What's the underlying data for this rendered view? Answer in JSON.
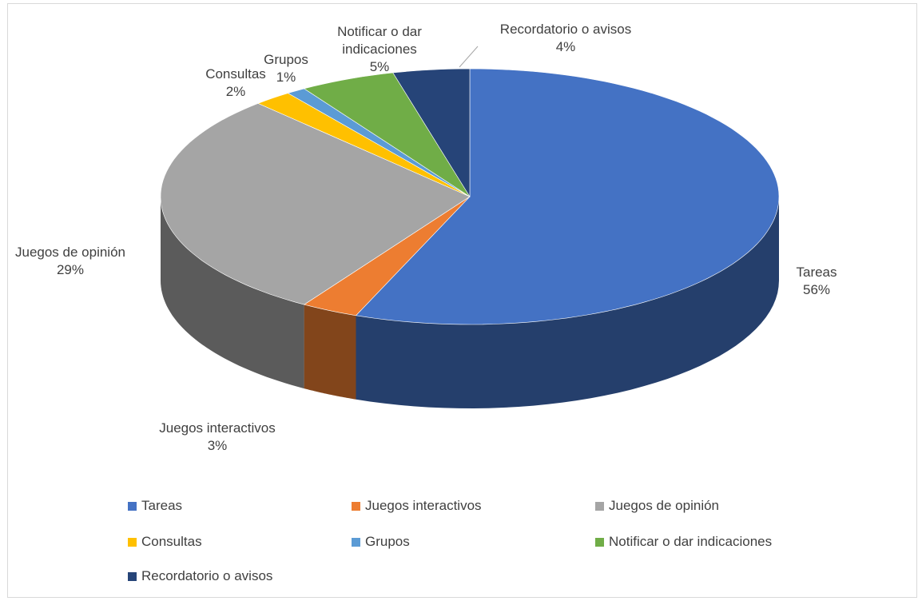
{
  "chart_data": {
    "type": "pie",
    "categories": [
      "Tareas",
      "Juegos interactivos",
      "Juegos de opinión",
      "Consultas",
      "Grupos",
      "Notificar o dar indicaciones",
      "Recordatorio o avisos"
    ],
    "values": [
      56,
      3,
      29,
      2,
      1,
      5,
      4
    ],
    "value_labels": [
      "56%",
      "3%",
      "29%",
      "2%",
      "1%",
      "5%",
      "4%"
    ],
    "colors": [
      "#4472c4",
      "#ed7d31",
      "#a5a5a5",
      "#ffc000",
      "#5b9bd5",
      "#70ad47",
      "#264478"
    ],
    "legend": "bottom"
  }
}
